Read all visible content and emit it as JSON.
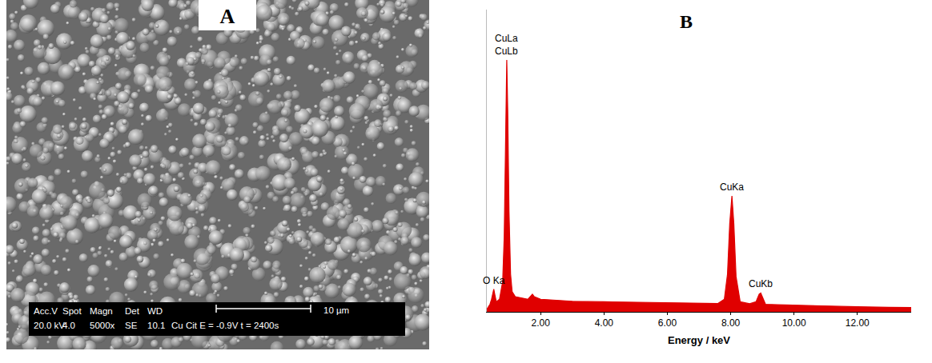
{
  "micrograph": {
    "label": "A",
    "info_headers": [
      "Acc.V",
      "Spot",
      "Magn",
      "Det",
      "WD"
    ],
    "info_values": [
      "20.0 kV",
      "4.0",
      "5000x",
      "SE",
      "10.1"
    ],
    "sample": "Cu Cit  E = -0.9V  t = 2400s",
    "scale_bar": "10 µm"
  },
  "chart_data": {
    "type": "area",
    "title": "B",
    "x_label": "Energy / keV",
    "x": [
      0.3,
      0.4,
      0.45,
      0.5,
      0.52,
      0.55,
      0.6,
      0.7,
      0.8,
      0.85,
      0.9,
      0.93,
      0.96,
      1.0,
      1.05,
      1.1,
      1.2,
      1.4,
      1.6,
      1.74,
      1.8,
      2.0,
      2.5,
      3.0,
      4.0,
      5.0,
      6.0,
      7.0,
      7.6,
      7.8,
      7.9,
      7.97,
      8.04,
      8.1,
      8.17,
      8.3,
      8.6,
      8.8,
      8.9,
      8.95,
      9.0,
      9.1,
      9.5,
      10.0,
      11.0,
      12.0,
      13.0,
      13.7
    ],
    "values": [
      1,
      3,
      5,
      8,
      9,
      7,
      4,
      5,
      12,
      30,
      70,
      100,
      80,
      40,
      15,
      8,
      6,
      5.5,
      5,
      7,
      6,
      5,
      4.5,
      4.2,
      4,
      3.8,
      3.6,
      3.4,
      3.3,
      5,
      15,
      35,
      46,
      35,
      14,
      4,
      3.2,
      4,
      7,
      7.5,
      6,
      3,
      2.8,
      2.6,
      2.3,
      2,
      1.8,
      1.7
    ],
    "color": "#e00000",
    "xlim": [
      0.3,
      13.7
    ],
    "xticks": [
      {
        "value": 2,
        "label": "2.00"
      },
      {
        "value": 4,
        "label": "4.00"
      },
      {
        "value": 6,
        "label": "6.00"
      },
      {
        "value": 8,
        "label": "8.00"
      },
      {
        "value": 10,
        "label": "10.00"
      },
      {
        "value": 12,
        "label": "12.00"
      }
    ],
    "ylim": [
      0,
      120
    ],
    "tick_labels": "x",
    "grid": false,
    "annotations": [
      {
        "text": "CuLa\nCuLb",
        "x": 0.93,
        "y": 100
      },
      {
        "text": "O Ka",
        "x": 0.52,
        "y": 9
      },
      {
        "text": "CuKa",
        "x": 8.04,
        "y": 46
      },
      {
        "text": "CuKb",
        "x": 8.95,
        "y": 7.5
      }
    ]
  }
}
